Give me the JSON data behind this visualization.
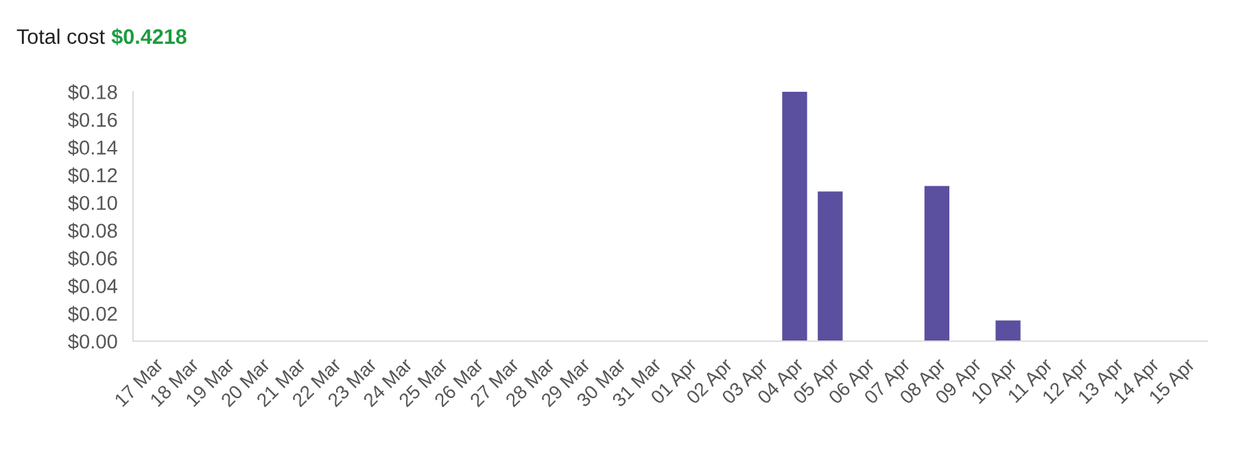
{
  "chart_data": {
    "type": "bar",
    "title": "Total cost",
    "subtitle": "$0.4218",
    "categories": [
      "17 Mar",
      "18 Mar",
      "19 Mar",
      "20 Mar",
      "21 Mar",
      "22 Mar",
      "23 Mar",
      "24 Mar",
      "25 Mar",
      "26 Mar",
      "27 Mar",
      "28 Mar",
      "29 Mar",
      "30 Mar",
      "31 Mar",
      "01 Apr",
      "02 Apr",
      "03 Apr",
      "04 Apr",
      "05 Apr",
      "06 Apr",
      "07 Apr",
      "08 Apr",
      "09 Apr",
      "10 Apr",
      "11 Apr",
      "12 Apr",
      "13 Apr",
      "14 Apr",
      "15 Apr"
    ],
    "series": [
      {
        "color": "#5b4fa0",
        "values": [
          0,
          0,
          0,
          0,
          0,
          0,
          0,
          0,
          0,
          0,
          0,
          0,
          0,
          0,
          0,
          0,
          0,
          0,
          0.18,
          0.108,
          0,
          0,
          0.112,
          0,
          0.015,
          0,
          0,
          0,
          0,
          0
        ]
      }
    ],
    "ylim": [
      0,
      0.18
    ],
    "yticks": [
      {
        "value": 0,
        "label": "$0.00"
      },
      {
        "value": 0.02,
        "label": "$0.02"
      },
      {
        "value": 0.04,
        "label": "$0.04"
      },
      {
        "value": 0.06,
        "label": "$0.06"
      },
      {
        "value": 0.08,
        "label": "$0.08"
      },
      {
        "value": 0.1,
        "label": "$0.10"
      },
      {
        "value": 0.12,
        "label": "$0.12"
      },
      {
        "value": 0.14,
        "label": "$0.14"
      },
      {
        "value": 0.16,
        "label": "$0.16"
      },
      {
        "value": 0.18,
        "label": "$0.18"
      }
    ],
    "grid": false,
    "legend": false
  }
}
